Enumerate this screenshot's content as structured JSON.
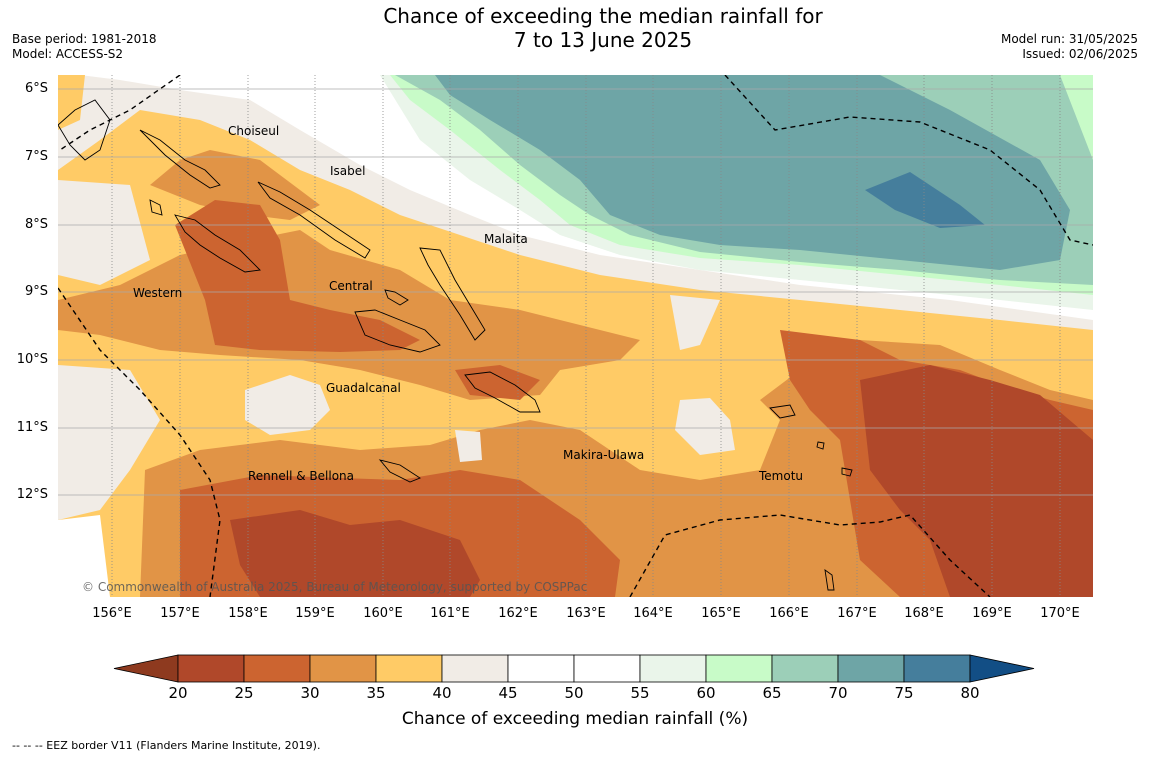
{
  "title": {
    "line1": "Chance of exceeding the median rainfall for",
    "line2": "7 to 13 June 2025"
  },
  "meta": {
    "base_period": "Base period: 1981-2018",
    "model": "Model: ACCESS-S2",
    "model_run": "Model run: 31/05/2025",
    "issued": "Issued: 02/06/2025"
  },
  "map": {
    "lat_labels": [
      "6°S",
      "7°S",
      "8°S",
      "9°S",
      "10°S",
      "11°S",
      "12°S"
    ],
    "lon_labels": [
      "156°E",
      "157°E",
      "158°E",
      "159°E",
      "160°E",
      "161°E",
      "162°E",
      "163°E",
      "164°E",
      "165°E",
      "166°E",
      "167°E",
      "168°E",
      "169°E",
      "170°E"
    ],
    "region_labels": [
      "Choiseul",
      "Isabel",
      "Malaita",
      "Western",
      "Central",
      "Guadalcanal",
      "Makira-Ulawa",
      "Rennell & Bellona",
      "Temotu"
    ],
    "copyright": "© Commonwealth of Australia 2025, Bureau of Meteorology, supported by COSPPac"
  },
  "colorbar": {
    "ticks": [
      "20",
      "25",
      "30",
      "35",
      "40",
      "45",
      "50",
      "55",
      "60",
      "65",
      "70",
      "75",
      "80"
    ],
    "colors": [
      "#8e3a1f",
      "#b0482a",
      "#cc6430",
      "#e19446",
      "#ffcb66",
      "#f1ece6",
      "#ffffff",
      "#ffffff",
      "#eaf5ea",
      "#c8fbc8",
      "#9ccfb8",
      "#6ea5a6",
      "#457e9c",
      "#124e85"
    ],
    "label": "Chance of exceeding median rainfall (%)"
  },
  "footnote": "-- -- -- EEZ border V11 (Flanders Marine Institute, 2019)."
}
